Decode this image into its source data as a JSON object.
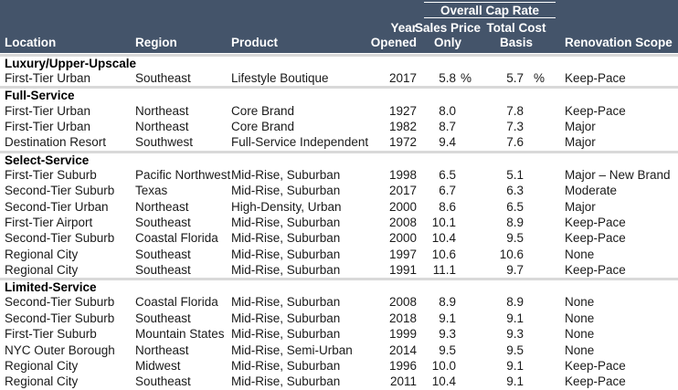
{
  "colors": {
    "header_bg": "#44546A",
    "header_text": "#FFFFFF",
    "section_divider": "#D9D9D9",
    "body_text": "#1A1A1A"
  },
  "table": {
    "header": {
      "group_label": "Overall Cap Rate",
      "year_line1": "Year",
      "year_line2": "Opened",
      "sales_line1": "Sales Price",
      "sales_line2": "Only",
      "cost_line1": "Total Cost",
      "cost_line2": "Basis",
      "location": "Location",
      "region": "Region",
      "product": "Product",
      "renovation": "Renovation Scope"
    },
    "sections": [
      {
        "label": "Luxury/Upper-Upscale",
        "rows": [
          {
            "location": "First-Tier Urban",
            "region": "Southeast",
            "product": "Lifestyle Boutique",
            "year": "2017",
            "sales": "5.8",
            "sales_pct": "%",
            "cost": "5.7",
            "cost_pct": "%",
            "renovation": "Keep-Pace"
          }
        ]
      },
      {
        "label": "Full-Service",
        "rows": [
          {
            "location": "First-Tier Urban",
            "region": "Northeast",
            "product": "Core Brand",
            "year": "1927",
            "sales": "8.0",
            "sales_pct": "",
            "cost": "7.8",
            "cost_pct": "",
            "renovation": "Keep-Pace"
          },
          {
            "location": "First-Tier Urban",
            "region": "Northeast",
            "product": "Core Brand",
            "year": "1982",
            "sales": "8.7",
            "sales_pct": "",
            "cost": "7.3",
            "cost_pct": "",
            "renovation": "Major"
          },
          {
            "location": "Destination Resort",
            "region": "Southwest",
            "product": "Full-Service Independent",
            "year": "1972",
            "sales": "9.4",
            "sales_pct": "",
            "cost": "7.6",
            "cost_pct": "",
            "renovation": "Major"
          }
        ]
      },
      {
        "label": "Select-Service",
        "rows": [
          {
            "location": "First-Tier Suburb",
            "region": "Pacific Northwest",
            "product": "Mid-Rise, Suburban",
            "year": "1998",
            "sales": "6.5",
            "sales_pct": "",
            "cost": "5.1",
            "cost_pct": "",
            "renovation": "Major – New Brand"
          },
          {
            "location": "Second-Tier Suburb",
            "region": "Texas",
            "product": "Mid-Rise, Suburban",
            "year": "2017",
            "sales": "6.7",
            "sales_pct": "",
            "cost": "6.3",
            "cost_pct": "",
            "renovation": "Moderate"
          },
          {
            "location": "Second-Tier Urban",
            "region": "Northeast",
            "product": "High-Density, Urban",
            "year": "2000",
            "sales": "8.6",
            "sales_pct": "",
            "cost": "6.5",
            "cost_pct": "",
            "renovation": "Major"
          },
          {
            "location": "First-Tier Airport",
            "region": "Southeast",
            "product": "Mid-Rise, Suburban",
            "year": "2008",
            "sales": "10.1",
            "sales_pct": "",
            "cost": "8.9",
            "cost_pct": "",
            "renovation": "Keep-Pace"
          },
          {
            "location": "Second-Tier Suburb",
            "region": "Coastal Florida",
            "product": "Mid-Rise, Suburban",
            "year": "2000",
            "sales": "10.4",
            "sales_pct": "",
            "cost": "9.5",
            "cost_pct": "",
            "renovation": "Keep-Pace"
          },
          {
            "location": "Regional City",
            "region": "Southeast",
            "product": "Mid-Rise, Suburban",
            "year": "1997",
            "sales": "10.6",
            "sales_pct": "",
            "cost": "10.6",
            "cost_pct": "",
            "renovation": "None"
          },
          {
            "location": "Regional City",
            "region": "Southeast",
            "product": "Mid-Rise, Suburban",
            "year": "1991",
            "sales": "11.1",
            "sales_pct": "",
            "cost": "9.7",
            "cost_pct": "",
            "renovation": "Keep-Pace"
          }
        ]
      },
      {
        "label": "Limited-Service",
        "rows": [
          {
            "location": "Second-Tier Suburb",
            "region": "Coastal Florida",
            "product": "Mid-Rise, Suburban",
            "year": "2008",
            "sales": "8.9",
            "sales_pct": "",
            "cost": "8.9",
            "cost_pct": "",
            "renovation": "None"
          },
          {
            "location": "Second-Tier Suburb",
            "region": "Southeast",
            "product": "Mid-Rise, Suburban",
            "year": "2018",
            "sales": "9.1",
            "sales_pct": "",
            "cost": "9.1",
            "cost_pct": "",
            "renovation": "None"
          },
          {
            "location": "First-Tier Suburb",
            "region": "Mountain States",
            "product": "Mid-Rise, Suburban",
            "year": "1999",
            "sales": "9.3",
            "sales_pct": "",
            "cost": "9.3",
            "cost_pct": "",
            "renovation": "None"
          },
          {
            "location": "NYC Outer Borough",
            "region": "Northeast",
            "product": "Mid-Rise, Semi-Urban",
            "year": "2014",
            "sales": "9.5",
            "sales_pct": "",
            "cost": "9.5",
            "cost_pct": "",
            "renovation": "None"
          },
          {
            "location": "Regional City",
            "region": "Midwest",
            "product": "Mid-Rise, Suburban",
            "year": "1996",
            "sales": "10.0",
            "sales_pct": "",
            "cost": "9.1",
            "cost_pct": "",
            "renovation": "Keep-Pace"
          },
          {
            "location": "Regional City",
            "region": "Southeast",
            "product": "Mid-Rise, Suburban",
            "year": "2011",
            "sales": "10.4",
            "sales_pct": "",
            "cost": "9.1",
            "cost_pct": "",
            "renovation": "Keep-Pace"
          }
        ]
      }
    ]
  }
}
